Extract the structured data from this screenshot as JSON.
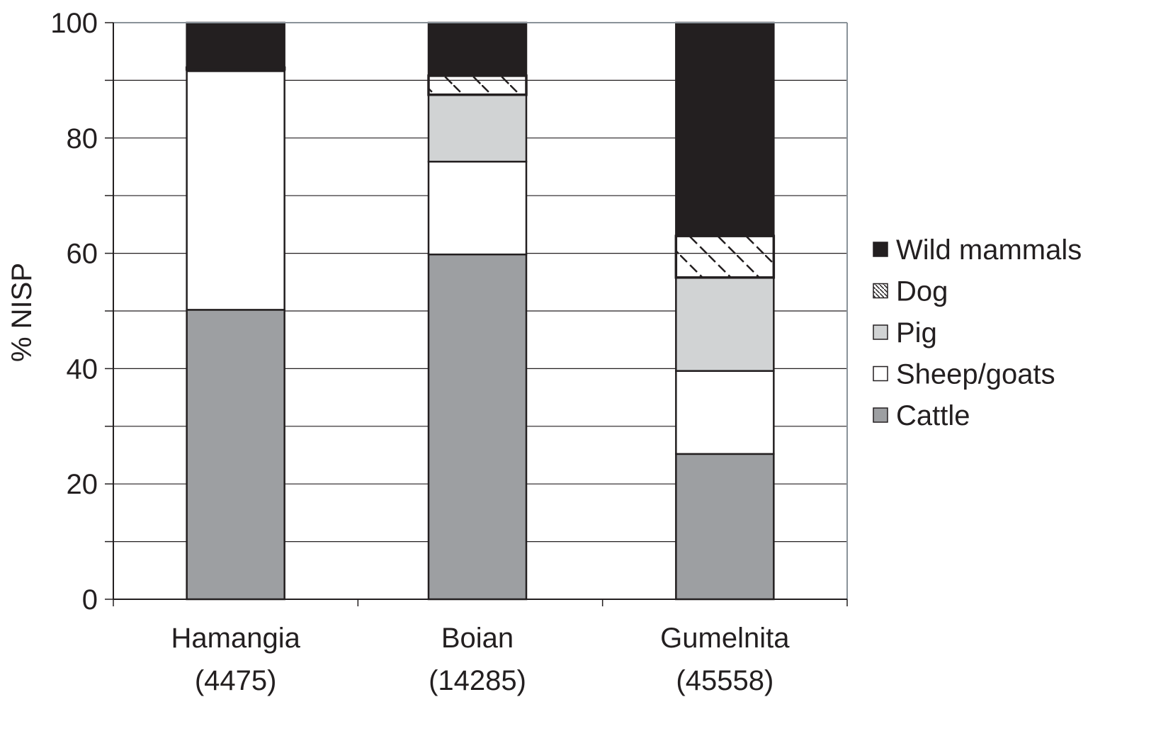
{
  "chart_data": {
    "type": "bar",
    "stacked": true,
    "title": "",
    "xlabel": "",
    "ylabel": "% NISP",
    "ylim": [
      0,
      100
    ],
    "yticks": [
      0,
      20,
      40,
      60,
      80,
      100
    ],
    "grid": true,
    "legend_position": "right",
    "categories": [
      "Hamangia",
      "Boian",
      "Gumelnita"
    ],
    "category_counts": [
      "(4475)",
      "(14285)",
      "(45558)"
    ],
    "series": [
      {
        "name": "Cattle",
        "values": [
          50.2,
          59.8,
          25.2
        ],
        "color": "#9d9fa2",
        "pattern": "solid"
      },
      {
        "name": "Sheep/goats",
        "values": [
          41.4,
          16.1,
          14.4
        ],
        "color": "#ffffff",
        "pattern": "solid"
      },
      {
        "name": "Pig",
        "values": [
          0.3,
          11.6,
          16.2
        ],
        "color": "#d1d3d4",
        "pattern": "solid"
      },
      {
        "name": "Dog",
        "values": [
          0.3,
          3.3,
          7.2
        ],
        "color": "#ffffff",
        "pattern": "hatch"
      },
      {
        "name": "Wild mammals",
        "values": [
          7.8,
          9.2,
          37.0
        ],
        "color": "#231f20",
        "pattern": "solid"
      }
    ]
  }
}
